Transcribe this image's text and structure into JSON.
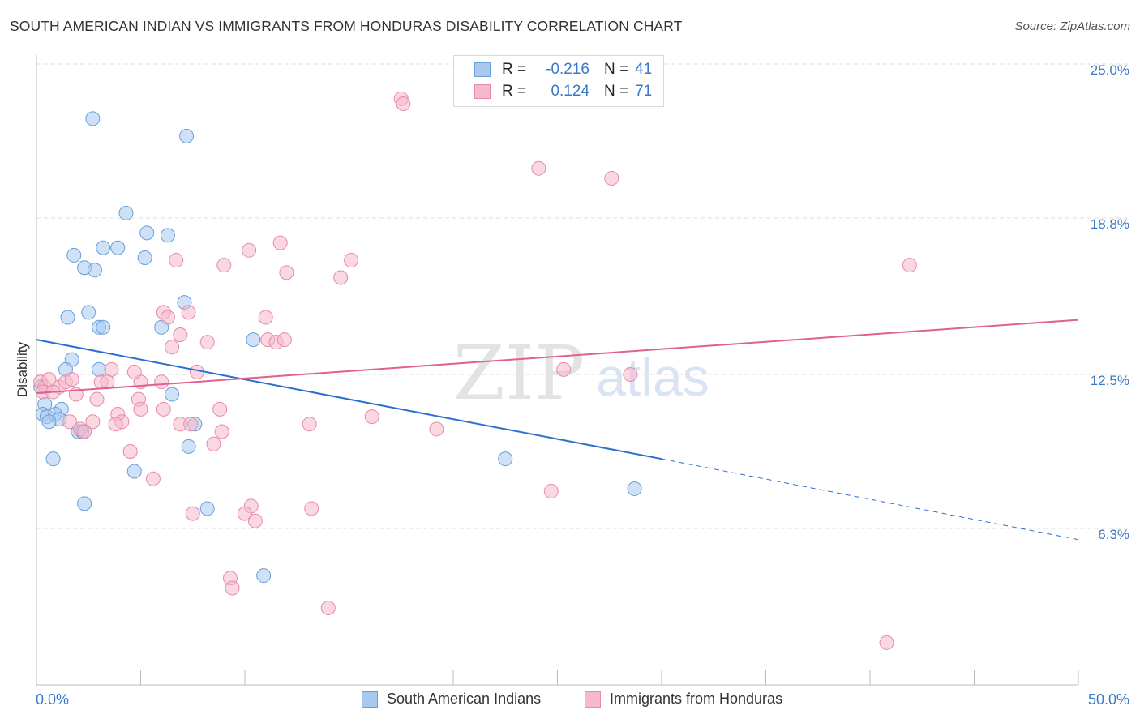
{
  "title": "SOUTH AMERICAN INDIAN VS IMMIGRANTS FROM HONDURAS DISABILITY CORRELATION CHART",
  "source": "Source: ZipAtlas.com",
  "watermark": {
    "zip": "ZIP",
    "atlas": "atlas"
  },
  "colors": {
    "blue_fill": "#a8c8f0",
    "blue_stroke": "#6a9fd8",
    "blue_line": "#2a6fd0",
    "pink_fill": "#f6b8cb",
    "pink_stroke": "#e88aa8",
    "pink_line": "#e06090",
    "axis_text": "#3a78c8",
    "grid": "#dddddd"
  },
  "legend": {
    "rows": [
      {
        "r_label": "R =",
        "r_value": "-0.216",
        "n_label": "N =",
        "n_value": "41"
      },
      {
        "r_label": "R =",
        "r_value": "0.124",
        "n_label": "N =",
        "n_value": "71"
      }
    ]
  },
  "chart_data": {
    "type": "scatter",
    "title": "SOUTH AMERICAN INDIAN VS IMMIGRANTS FROM HONDURAS DISABILITY CORRELATION CHART",
    "xlabel": "",
    "ylabel": "Disability",
    "xlim": [
      0,
      50
    ],
    "ylim": [
      0,
      25.8
    ],
    "x_tick_labels": [
      "0.0%",
      "50.0%"
    ],
    "y_ticks": [
      6.3,
      12.5,
      18.8,
      25.0
    ],
    "y_tick_labels": [
      "6.3%",
      "12.5%",
      "18.8%",
      "25.0%"
    ],
    "grid": true,
    "series": [
      {
        "name": "South American Indians",
        "r": -0.216,
        "n": 41,
        "trend": {
          "x0": 0,
          "y0": 13.9,
          "x1": 30,
          "y1": 9.1,
          "dash_to_x": 50,
          "dash_to_y": 5.85
        },
        "points": [
          [
            2.7,
            22.8
          ],
          [
            7.2,
            22.1
          ],
          [
            4.3,
            19.0
          ],
          [
            5.3,
            18.2
          ],
          [
            6.3,
            18.1
          ],
          [
            3.2,
            17.6
          ],
          [
            3.9,
            17.6
          ],
          [
            1.8,
            17.3
          ],
          [
            5.2,
            17.2
          ],
          [
            2.3,
            16.8
          ],
          [
            2.8,
            16.7
          ],
          [
            7.1,
            15.4
          ],
          [
            2.5,
            15.0
          ],
          [
            1.5,
            14.8
          ],
          [
            3.0,
            14.4
          ],
          [
            3.2,
            14.4
          ],
          [
            6.0,
            14.4
          ],
          [
            10.4,
            13.9
          ],
          [
            1.7,
            13.1
          ],
          [
            1.4,
            12.7
          ],
          [
            3.0,
            12.7
          ],
          [
            0.2,
            12.0
          ],
          [
            6.5,
            11.7
          ],
          [
            0.4,
            11.3
          ],
          [
            1.2,
            11.1
          ],
          [
            0.3,
            10.9
          ],
          [
            0.5,
            10.8
          ],
          [
            0.9,
            10.9
          ],
          [
            1.1,
            10.7
          ],
          [
            0.6,
            10.6
          ],
          [
            7.6,
            10.5
          ],
          [
            2.0,
            10.2
          ],
          [
            2.2,
            10.2
          ],
          [
            7.3,
            9.6
          ],
          [
            0.8,
            9.1
          ],
          [
            22.5,
            9.1
          ],
          [
            4.7,
            8.6
          ],
          [
            28.7,
            7.9
          ],
          [
            2.3,
            7.3
          ],
          [
            8.2,
            7.1
          ],
          [
            10.9,
            4.4
          ]
        ]
      },
      {
        "name": "Immigrants from Honduras",
        "r": 0.124,
        "n": 71,
        "trend": {
          "x0": 0,
          "y0": 11.75,
          "x1": 50,
          "y1": 14.7
        },
        "points": [
          [
            17.5,
            23.6
          ],
          [
            17.6,
            23.4
          ],
          [
            24.1,
            20.8
          ],
          [
            27.6,
            20.4
          ],
          [
            11.7,
            17.8
          ],
          [
            10.2,
            17.5
          ],
          [
            6.7,
            17.1
          ],
          [
            15.1,
            17.1
          ],
          [
            9.0,
            16.9
          ],
          [
            41.9,
            16.9
          ],
          [
            12.0,
            16.6
          ],
          [
            14.6,
            16.4
          ],
          [
            6.1,
            15.0
          ],
          [
            7.3,
            15.0
          ],
          [
            6.3,
            14.8
          ],
          [
            11.0,
            14.8
          ],
          [
            6.9,
            14.1
          ],
          [
            11.1,
            13.9
          ],
          [
            8.2,
            13.8
          ],
          [
            11.5,
            13.8
          ],
          [
            11.9,
            13.9
          ],
          [
            6.5,
            13.6
          ],
          [
            25.3,
            12.7
          ],
          [
            28.5,
            12.5
          ],
          [
            3.6,
            12.7
          ],
          [
            7.7,
            12.6
          ],
          [
            0.2,
            12.2
          ],
          [
            0.4,
            12.0
          ],
          [
            0.6,
            12.3
          ],
          [
            1.1,
            12.0
          ],
          [
            1.4,
            12.2
          ],
          [
            1.7,
            12.3
          ],
          [
            3.1,
            12.2
          ],
          [
            3.4,
            12.2
          ],
          [
            5.0,
            12.2
          ],
          [
            6.0,
            12.2
          ],
          [
            4.7,
            12.6
          ],
          [
            0.3,
            11.8
          ],
          [
            0.8,
            11.8
          ],
          [
            1.9,
            11.7
          ],
          [
            4.9,
            11.5
          ],
          [
            2.9,
            11.5
          ],
          [
            5.0,
            11.1
          ],
          [
            6.1,
            11.1
          ],
          [
            8.8,
            11.1
          ],
          [
            3.9,
            10.9
          ],
          [
            4.1,
            10.6
          ],
          [
            1.6,
            10.6
          ],
          [
            2.7,
            10.6
          ],
          [
            6.9,
            10.5
          ],
          [
            7.4,
            10.5
          ],
          [
            13.1,
            10.5
          ],
          [
            16.1,
            10.8
          ],
          [
            19.2,
            10.3
          ],
          [
            2.1,
            10.3
          ],
          [
            2.3,
            10.2
          ],
          [
            3.8,
            10.5
          ],
          [
            8.9,
            10.2
          ],
          [
            8.5,
            9.7
          ],
          [
            4.5,
            9.4
          ],
          [
            5.6,
            8.3
          ],
          [
            24.7,
            7.8
          ],
          [
            10.3,
            7.2
          ],
          [
            13.2,
            7.1
          ],
          [
            10.0,
            6.9
          ],
          [
            7.5,
            6.9
          ],
          [
            10.5,
            6.6
          ],
          [
            9.3,
            4.3
          ],
          [
            9.4,
            3.9
          ],
          [
            14.0,
            3.1
          ],
          [
            40.8,
            1.7
          ]
        ]
      }
    ]
  },
  "bottom_legend": [
    {
      "label": "South American Indians"
    },
    {
      "label": "Immigrants from Honduras"
    }
  ]
}
